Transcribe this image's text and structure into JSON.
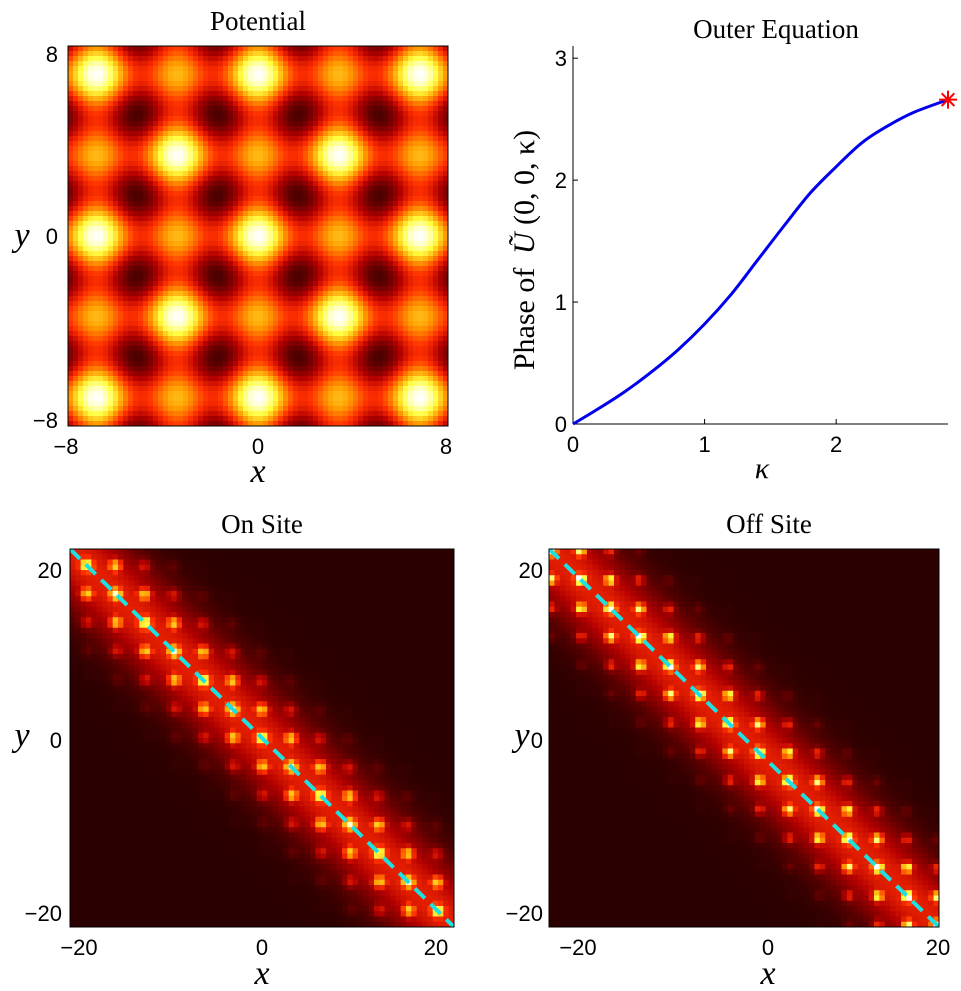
{
  "colors": {
    "colormap": [
      "#000000",
      "#5a0000",
      "#b40000",
      "#ff3000",
      "#ff9a00",
      "#ffff40",
      "#ffffff"
    ],
    "phase_curve": "#0000ee",
    "endpoint_marker": "#ff0000",
    "dashed_line": "#1fe0e0",
    "heatmap_background": "#1a0000"
  },
  "chart_data": [
    {
      "type": "heatmap",
      "title": "Potential",
      "xlabel": "x",
      "ylabel": "y",
      "xlim": [
        -8,
        8
      ],
      "ylim": [
        -8,
        8
      ],
      "xticks": [
        "−8",
        "0",
        "8"
      ],
      "yticks": [
        "−8",
        "0",
        "8"
      ],
      "colormap": "hot"
    },
    {
      "type": "line",
      "title": "Outer Equation",
      "xlabel": "κ",
      "ylabel_prefix": "Phase of",
      "ylabel_symbol": "Ũ",
      "ylabel_args": "(0, 0, κ)",
      "xlim": [
        0,
        2.85
      ],
      "ylim": [
        0,
        3.1
      ],
      "xticks": [
        "0",
        "1",
        "2"
      ],
      "yticks": [
        "0",
        "1",
        "2",
        "3"
      ],
      "series": [
        {
          "x": [
            0,
            0.2,
            0.4,
            0.6,
            0.8,
            1.0,
            1.2,
            1.4,
            1.6,
            1.8,
            2.0,
            2.2,
            2.4,
            2.6,
            2.85
          ],
          "y": [
            0,
            0.13,
            0.27,
            0.43,
            0.61,
            0.82,
            1.06,
            1.34,
            1.62,
            1.89,
            2.11,
            2.31,
            2.45,
            2.56,
            2.66
          ]
        }
      ],
      "marker": {
        "x": 2.85,
        "y": 2.66,
        "symbol": "*"
      },
      "grid": false
    },
    {
      "type": "heatmap",
      "title": "On Site",
      "xlabel": "x",
      "ylabel": "y",
      "xlim": [
        -21,
        21
      ],
      "ylim": [
        -21,
        21
      ],
      "xticks": [
        "−20",
        "0",
        "20"
      ],
      "yticks": [
        "−20",
        "0",
        "20"
      ],
      "colormap": "hot",
      "overlay": {
        "style": "dashed",
        "from": [
          -21,
          21
        ],
        "to": [
          21,
          -21
        ]
      }
    },
    {
      "type": "heatmap",
      "title": "Off Site",
      "xlabel": "x",
      "ylabel": "y",
      "xlim": [
        -21,
        21
      ],
      "ylim": [
        -21,
        21
      ],
      "xticks": [
        "−20",
        "0",
        "20"
      ],
      "yticks": [
        "−20",
        "0",
        "20"
      ],
      "colormap": "hot",
      "overlay": {
        "style": "dashed",
        "from": [
          -21,
          21
        ],
        "to": [
          21,
          -21
        ]
      }
    }
  ]
}
